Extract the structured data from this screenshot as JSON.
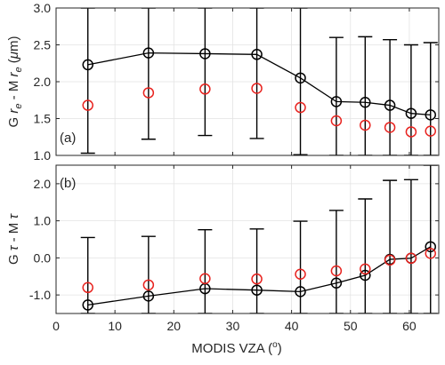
{
  "chart_data": [
    {
      "type": "scatter",
      "panel_tag": "(a)",
      "ylabel_parts": [
        "G ",
        "r",
        "e",
        " - M ",
        "r",
        "e",
        " (",
        "μ",
        "m)"
      ],
      "ylim": [
        1.0,
        3.0
      ],
      "yticks": [
        1.0,
        1.5,
        2.0,
        2.5,
        3.0
      ],
      "ytick_labels": [
        "1.0",
        "1.5",
        "2.0",
        "2.5",
        "3.0"
      ],
      "xlim": [
        0,
        65
      ],
      "xticks": [
        0,
        10,
        20,
        30,
        40,
        50,
        60
      ],
      "grid": true,
      "series": [
        {
          "color": "#000000",
          "marker": "circle",
          "connected": true,
          "points": [
            {
              "x": 5.4,
              "y": 2.23,
              "err_low": 1.03,
              "err_high": 3.0
            },
            {
              "x": 15.7,
              "y": 2.39,
              "err_low": 1.22,
              "err_high": 3.0
            },
            {
              "x": 25.3,
              "y": 2.38,
              "err_low": 1.27,
              "err_high": 3.0
            },
            {
              "x": 34.1,
              "y": 2.37,
              "err_low": 1.23,
              "err_high": 3.0
            },
            {
              "x": 41.5,
              "y": 2.05,
              "err_low": 1.01,
              "err_high": 3.0
            },
            {
              "x": 47.6,
              "y": 1.73,
              "err_low": 1.0,
              "err_high": 2.6
            },
            {
              "x": 52.5,
              "y": 1.72,
              "err_low": 1.0,
              "err_high": 2.61
            },
            {
              "x": 56.7,
              "y": 1.68,
              "err_low": 1.0,
              "err_high": 2.57
            },
            {
              "x": 60.3,
              "y": 1.57,
              "err_low": 1.0,
              "err_high": 2.5
            },
            {
              "x": 63.6,
              "y": 1.55,
              "err_low": 1.0,
              "err_high": 2.53
            }
          ]
        },
        {
          "color": "#e8231f",
          "marker": "circle",
          "connected": false,
          "points": [
            {
              "x": 5.4,
              "y": 1.68
            },
            {
              "x": 15.7,
              "y": 1.85
            },
            {
              "x": 25.3,
              "y": 1.9
            },
            {
              "x": 34.1,
              "y": 1.91
            },
            {
              "x": 41.5,
              "y": 1.65
            },
            {
              "x": 47.6,
              "y": 1.47
            },
            {
              "x": 52.5,
              "y": 1.41
            },
            {
              "x": 56.7,
              "y": 1.38
            },
            {
              "x": 60.3,
              "y": 1.32
            },
            {
              "x": 63.6,
              "y": 1.33
            }
          ]
        }
      ]
    },
    {
      "type": "scatter",
      "panel_tag": "(b)",
      "ylabel_parts": [
        "G ",
        "τ",
        " - M  ",
        "τ"
      ],
      "ylim": [
        -1.5,
        2.5
      ],
      "yticks": [
        -1.0,
        0.0,
        1.0,
        2.0
      ],
      "ytick_labels": [
        "-1.0",
        "0.0",
        "1.0",
        "2.0"
      ],
      "xlim": [
        0,
        65
      ],
      "xticks": [
        0,
        10,
        20,
        30,
        40,
        50,
        60
      ],
      "xtick_labels": [
        "0",
        "10",
        "20",
        "30",
        "40",
        "50",
        "60"
      ],
      "xlabel_parts": [
        "MODIS VZA (",
        "o",
        ")"
      ],
      "grid": true,
      "series": [
        {
          "color": "#000000",
          "marker": "circle",
          "connected": true,
          "points": [
            {
              "x": 5.4,
              "y": -1.27,
              "err_low": -1.5,
              "err_high": 0.55
            },
            {
              "x": 15.7,
              "y": -1.03,
              "err_low": -1.5,
              "err_high": 0.58
            },
            {
              "x": 25.3,
              "y": -0.83,
              "err_low": -1.5,
              "err_high": 0.76
            },
            {
              "x": 34.1,
              "y": -0.87,
              "err_low": -1.5,
              "err_high": 0.78
            },
            {
              "x": 41.5,
              "y": -0.91,
              "err_low": -1.5,
              "err_high": 0.99
            },
            {
              "x": 47.6,
              "y": -0.68,
              "err_low": -1.5,
              "err_high": 1.28
            },
            {
              "x": 52.5,
              "y": -0.47,
              "err_low": -1.5,
              "err_high": 1.59
            },
            {
              "x": 56.7,
              "y": -0.04,
              "err_low": -1.5,
              "err_high": 2.09
            },
            {
              "x": 60.3,
              "y": -0.01,
              "err_low": -1.5,
              "err_high": 2.11
            },
            {
              "x": 63.6,
              "y": 0.3,
              "err_low": -1.5,
              "err_high": 2.5
            }
          ]
        },
        {
          "color": "#e8231f",
          "marker": "circle",
          "connected": false,
          "points": [
            {
              "x": 5.4,
              "y": -0.8
            },
            {
              "x": 15.7,
              "y": -0.73
            },
            {
              "x": 25.3,
              "y": -0.56
            },
            {
              "x": 34.1,
              "y": -0.57
            },
            {
              "x": 41.5,
              "y": -0.44
            },
            {
              "x": 47.6,
              "y": -0.35
            },
            {
              "x": 52.5,
              "y": -0.3
            },
            {
              "x": 56.7,
              "y": -0.06
            },
            {
              "x": 60.3,
              "y": -0.01
            },
            {
              "x": 63.6,
              "y": 0.12
            }
          ]
        }
      ]
    }
  ]
}
